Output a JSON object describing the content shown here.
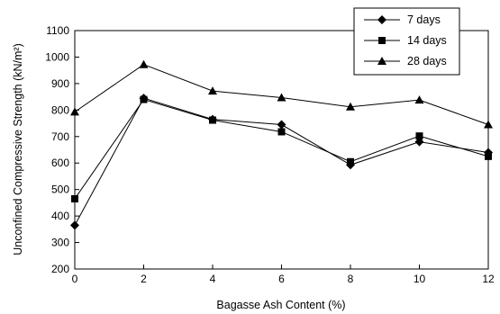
{
  "chart_data": {
    "type": "line",
    "xlabel": "Bagasse Ash Content (%)",
    "ylabel": "Unconfined Compressive Strength (kN/m²)",
    "xlim": [
      0,
      12
    ],
    "ylim": [
      200,
      1100
    ],
    "xticks": [
      0,
      2,
      4,
      6,
      8,
      10,
      12
    ],
    "yticks": [
      200,
      300,
      400,
      500,
      600,
      700,
      800,
      900,
      1000,
      1100
    ],
    "grid": false,
    "legend_position": "top-right",
    "x": [
      0,
      2,
      4,
      6,
      8,
      10,
      12
    ],
    "series": [
      {
        "name": "7 days",
        "marker": "diamond",
        "color": "#000000",
        "values": [
          365,
          845,
          765,
          745,
          593,
          680,
          640
        ]
      },
      {
        "name": "14 days",
        "marker": "square",
        "color": "#000000",
        "values": [
          465,
          840,
          762,
          718,
          605,
          702,
          625
        ]
      },
      {
        "name": "28 days",
        "marker": "triangle",
        "color": "#000000",
        "values": [
          793,
          972,
          872,
          847,
          812,
          838,
          745
        ]
      }
    ]
  }
}
